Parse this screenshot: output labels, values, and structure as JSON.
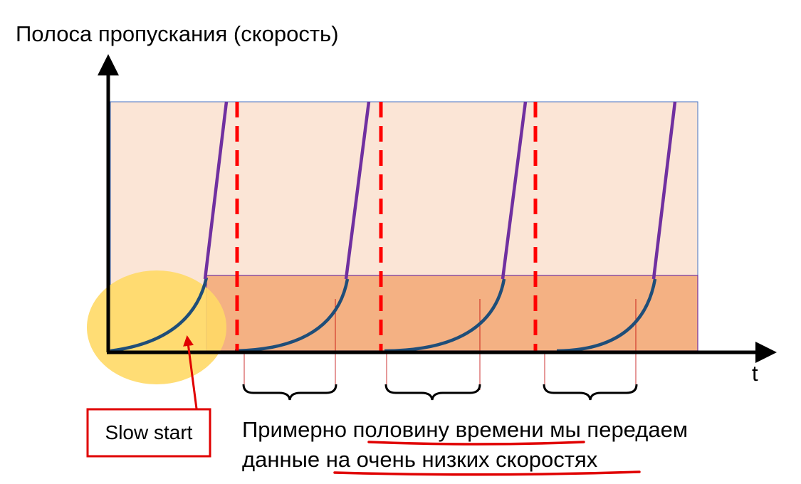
{
  "axes": {
    "y_label": "Полоса пропускания (скорость)",
    "x_label": "t"
  },
  "callout": {
    "label": "Slow start"
  },
  "caption": {
    "line1_before": "Примерно ",
    "line1_highlight": "половину времени",
    "line1_after": " мы передаем",
    "line2_before": "данные ",
    "line2_highlight": "на очень низких скоростях"
  },
  "colors": {
    "upper_band": "#fbe5d6",
    "lower_band": "#f4b183",
    "band_border": "#7030a0",
    "outer_border": "#4472c4",
    "curve": "#1f4e79",
    "ramp": "#7030a0",
    "drop_line": "#ff0000",
    "slow_start_circle": "#ffd966",
    "axis": "#000000",
    "accent": "#e00000"
  },
  "cycles": 4
}
